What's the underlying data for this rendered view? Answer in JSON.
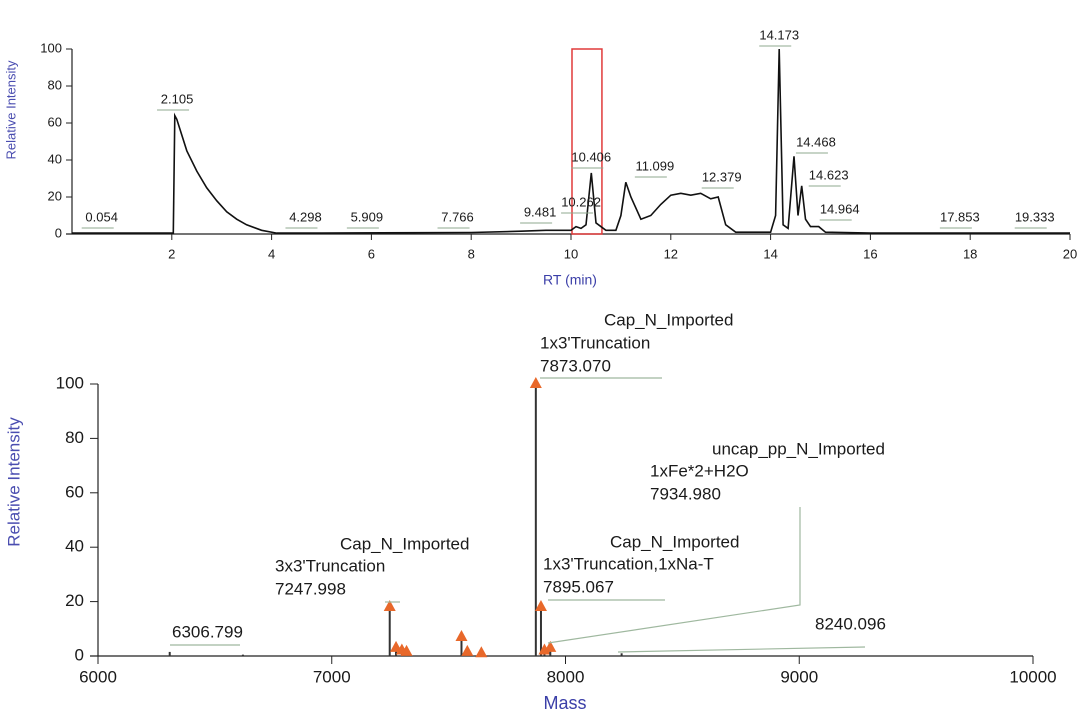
{
  "chart_data": [
    {
      "type": "line",
      "xlabel": "RT (min)",
      "ylabel": "Relative Intensity",
      "color": "#111111",
      "xlim": [
        0,
        20
      ],
      "ylim": [
        0,
        100
      ],
      "xticks": [
        2,
        4,
        6,
        8,
        10,
        12,
        14,
        16,
        18,
        20
      ],
      "yticks": [
        0,
        20,
        40,
        60,
        80,
        100
      ],
      "x": [
        0,
        2.0,
        2.03,
        2.06,
        2.1,
        2.3,
        2.5,
        2.7,
        2.9,
        3.1,
        3.3,
        3.5,
        3.8,
        4.1,
        5,
        8,
        9,
        9.5,
        10.0,
        10.1,
        10.2,
        10.3,
        10.406,
        10.5,
        10.7,
        10.9,
        11.0,
        11.099,
        11.2,
        11.4,
        11.6,
        11.8,
        12.0,
        12.2,
        12.4,
        12.6,
        12.8,
        12.95,
        13.1,
        13.3,
        14.0,
        14.1,
        14.173,
        14.25,
        14.35,
        14.468,
        14.55,
        14.623,
        14.7,
        14.8,
        14.964,
        15.1,
        16,
        20
      ],
      "values": [
        0.5,
        0.5,
        0.5,
        64,
        62,
        45,
        34,
        25,
        18,
        12,
        8,
        5,
        2,
        0.5,
        0.5,
        0.8,
        1.5,
        2,
        2,
        4,
        3,
        5,
        33,
        6,
        2,
        2,
        10,
        28,
        20,
        8,
        10,
        16,
        21,
        22,
        21,
        22,
        19,
        20,
        5,
        1,
        1,
        10,
        100,
        5,
        3,
        42,
        10,
        26,
        8,
        4,
        4,
        1,
        0.5,
        0.5
      ],
      "peak_labels": [
        0.054,
        2.105,
        4.298,
        5.909,
        7.766,
        9.481,
        10.262,
        10.406,
        11.099,
        12.379,
        14.173,
        14.468,
        14.623,
        14.964,
        17.853,
        19.333
      ],
      "highlight": [
        10.02,
        10.62
      ],
      "highlight_color": "#e03a3a"
    },
    {
      "type": "stem",
      "xlabel": "Mass",
      "ylabel": "Relative Intensity",
      "color": "#333333",
      "marker_color": "#e8682a",
      "xlim": [
        6000,
        10000
      ],
      "ylim": [
        0,
        100
      ],
      "xticks": [
        6000,
        7000,
        8000,
        9000,
        10000
      ],
      "yticks": [
        0,
        20,
        40,
        60,
        80,
        100
      ],
      "x": [
        6306.799,
        6620,
        7247.998,
        7275,
        7300,
        7320,
        7555,
        7580,
        7640,
        7873.07,
        7895.067,
        7910,
        7934.98,
        8240.096
      ],
      "values": [
        1.5,
        0.5,
        18,
        3,
        2,
        1.5,
        7,
        1.5,
        1,
        100,
        18,
        2,
        3,
        1
      ],
      "marked": [
        false,
        false,
        true,
        true,
        true,
        true,
        true,
        true,
        true,
        true,
        true,
        true,
        true,
        false
      ],
      "annotations": [
        {
          "value": 7873.07,
          "label": "7873.070",
          "lines": [
            "Cap_N_Imported",
            "1x3'Truncation"
          ]
        },
        {
          "value": 7934.98,
          "label": "7934.980",
          "lines": [
            "uncap_pp_N_Imported",
            "1xFe*2+H2O"
          ]
        },
        {
          "value": 7895.067,
          "label": "7895.067",
          "lines": [
            "Cap_N_Imported",
            "1x3'Truncation,1xNa-T"
          ]
        },
        {
          "value": 7247.998,
          "label": "7247.998",
          "lines": [
            "Cap_N_Imported",
            "3x3'Truncation"
          ]
        },
        {
          "value": 6306.799,
          "label": "6306.799",
          "lines": []
        },
        {
          "value": 8240.096,
          "label": "8240.096",
          "lines": []
        }
      ]
    }
  ]
}
